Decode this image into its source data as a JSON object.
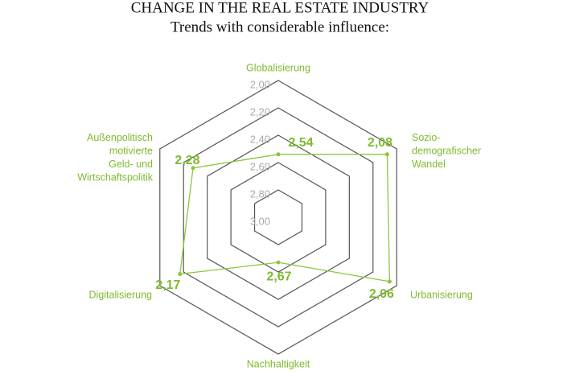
{
  "chart_data": {
    "type": "radar",
    "title": "CHANGE IN THE REAL ESTATE INDUSTRY",
    "subtitle": "Trends with considerable influence:",
    "categories": [
      "Globalisierung",
      "Sozio-\ndemografischer\nWandel",
      "Urbanisierung",
      "Nachhaltigkeit",
      "Digitalisierung",
      "Außenpolitisch\nmotivierte\nGeld- und\nWirtschaftspolitik"
    ],
    "values": [
      2.54,
      2.08,
      2.06,
      2.67,
      2.17,
      2.28
    ],
    "value_labels": [
      "2,54",
      "2,08",
      "2,06",
      "2,67",
      "2,17",
      "2,28"
    ],
    "color": "#8cc63f",
    "ylim": [
      3.0,
      2.0
    ],
    "yticks": [
      {
        "value": 2.0,
        "label": "2,00"
      },
      {
        "value": 2.2,
        "label": "2,20"
      },
      {
        "value": 2.4,
        "label": "2,40"
      },
      {
        "value": 2.6,
        "label": "2,60"
      },
      {
        "value": 2.8,
        "label": "2,80"
      },
      {
        "value": 3.0,
        "label": "3,00"
      }
    ],
    "grid": true
  }
}
